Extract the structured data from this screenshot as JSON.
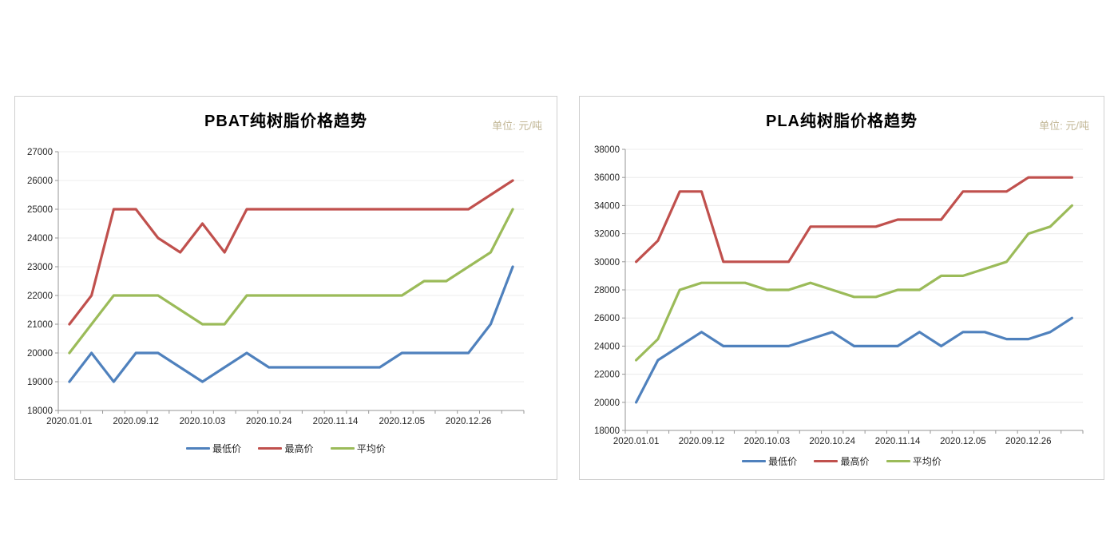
{
  "colors": {
    "lowest": "#4F81BD",
    "highest": "#C0504D",
    "average": "#9BBB59",
    "grid": "#ececec",
    "axis": "#969696",
    "tick_text": "#262626",
    "title": "#000000",
    "unit_text": "#c2b796",
    "panel_border": "#cfcfcf",
    "background": "#ffffff"
  },
  "chart_data": [
    {
      "type": "line",
      "title": "PBAT纯树脂价格趋势",
      "unit_label": "单位: 元/吨",
      "grid": true,
      "legend_position": "bottom",
      "x_axis": {
        "n_points": 21,
        "label_interval": 3,
        "labels_visible": [
          "2020.01.01",
          "2020.09.12",
          "2020.10.03",
          "2020.10.24",
          "2020.11.14",
          "2020.12.05",
          "2020.12.26"
        ]
      },
      "y_axis": {
        "min": 18000,
        "max": 27000,
        "step": 1000,
        "ticks": [
          27000,
          26000,
          25000,
          24000,
          23000,
          22000,
          21000,
          20000,
          19000,
          18000
        ]
      },
      "series": [
        {
          "name": "最低价",
          "color": "#4F81BD",
          "values": [
            19000,
            20000,
            19000,
            20000,
            20000,
            19500,
            19000,
            19500,
            20000,
            19500,
            19500,
            19500,
            19500,
            19500,
            19500,
            20000,
            20000,
            20000,
            20000,
            21000,
            23000
          ]
        },
        {
          "name": "最高价",
          "color": "#C0504D",
          "values": [
            21000,
            22000,
            25000,
            25000,
            24000,
            23500,
            24500,
            23500,
            25000,
            25000,
            25000,
            25000,
            25000,
            25000,
            25000,
            25000,
            25000,
            25000,
            25000,
            25500,
            26000
          ]
        },
        {
          "name": "平均价",
          "color": "#9BBB59",
          "values": [
            20000,
            21000,
            22000,
            22000,
            22000,
            21500,
            21000,
            21000,
            22000,
            22000,
            22000,
            22000,
            22000,
            22000,
            22000,
            22000,
            22500,
            22500,
            23000,
            23500,
            25000
          ]
        }
      ]
    },
    {
      "type": "line",
      "title": "PLA纯树脂价格趋势",
      "unit_label": "单位: 元/吨",
      "grid": true,
      "legend_position": "bottom",
      "x_axis": {
        "n_points": 21,
        "label_interval": 3,
        "labels_visible": [
          "2020.01.01",
          "2020.09.12",
          "2020.10.03",
          "2020.10.24",
          "2020.11.14",
          "2020.12.05",
          "2020.12.26"
        ]
      },
      "y_axis": {
        "min": 18000,
        "max": 38000,
        "step": 2000,
        "ticks": [
          38000,
          36000,
          34000,
          32000,
          30000,
          28000,
          26000,
          24000,
          22000,
          20000,
          18000
        ]
      },
      "series": [
        {
          "name": "最低价",
          "color": "#4F81BD",
          "values": [
            20000,
            23000,
            24000,
            25000,
            24000,
            24000,
            24000,
            24000,
            24500,
            25000,
            24000,
            24000,
            24000,
            25000,
            24000,
            25000,
            25000,
            24500,
            24500,
            25000,
            26000
          ]
        },
        {
          "name": "最高价",
          "color": "#C0504D",
          "values": [
            30000,
            31500,
            35000,
            35000,
            30000,
            30000,
            30000,
            30000,
            32500,
            32500,
            32500,
            32500,
            33000,
            33000,
            33000,
            35000,
            35000,
            35000,
            36000,
            36000,
            36000
          ]
        },
        {
          "name": "平均价",
          "color": "#9BBB59",
          "values": [
            23000,
            24500,
            28000,
            28500,
            28500,
            28500,
            28000,
            28000,
            28500,
            28000,
            27500,
            27500,
            28000,
            28000,
            29000,
            29000,
            29500,
            30000,
            32000,
            32500,
            34000
          ]
        }
      ]
    }
  ]
}
